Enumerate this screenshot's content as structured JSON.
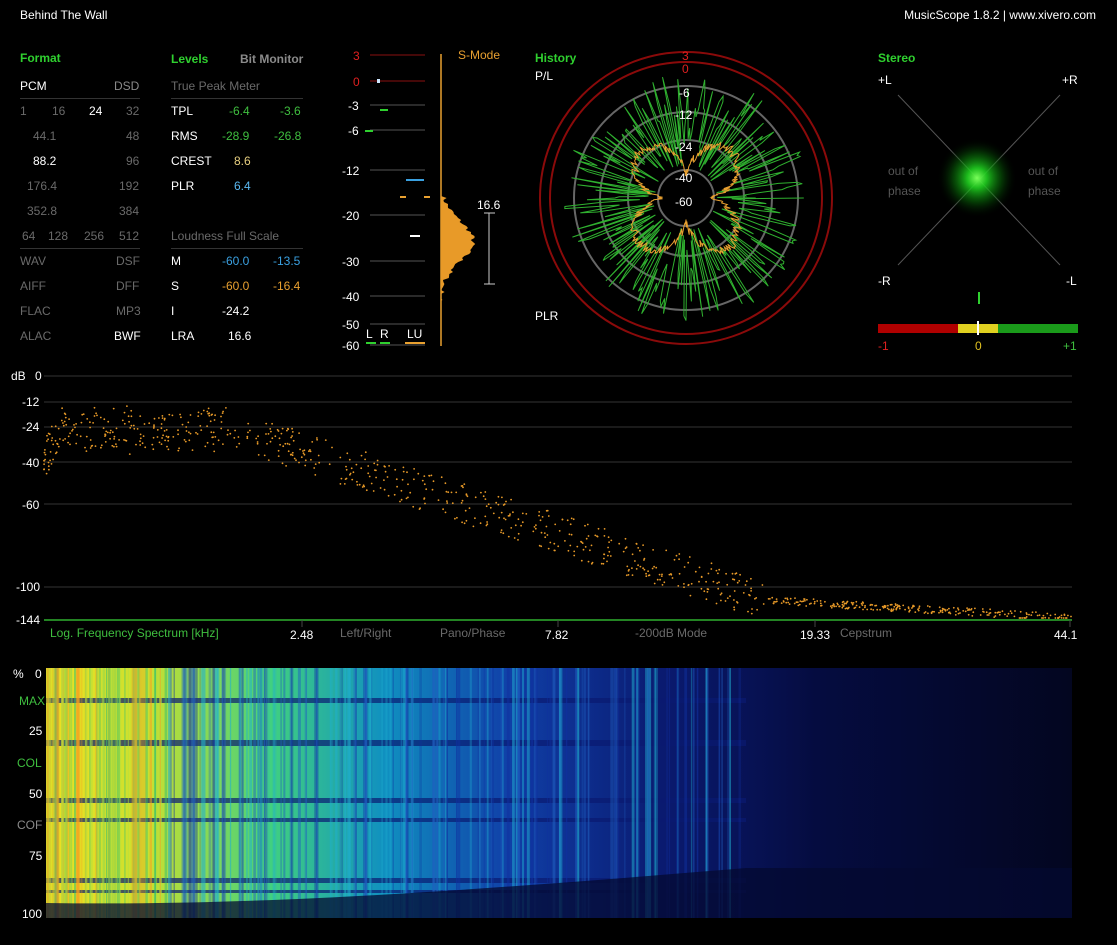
{
  "header": {
    "track_title": "Behind The Wall",
    "app_info": "MusicScope 1.8.2 | www.xivero.com"
  },
  "format": {
    "heading": "Format",
    "pcm": "PCM",
    "dsd": "DSD",
    "bit_depths": [
      "1",
      "16",
      "24",
      "32"
    ],
    "rates": [
      [
        "44.1",
        "48"
      ],
      [
        "88.2",
        "96"
      ],
      [
        "176.4",
        "192"
      ],
      [
        "352.8",
        "384"
      ]
    ],
    "dsd_rates": [
      "64",
      "128",
      "256",
      "512"
    ],
    "file_types": [
      [
        "WAV",
        "DSF"
      ],
      [
        "AIFF",
        "DFF"
      ],
      [
        "FLAC",
        "MP3"
      ],
      [
        "ALAC",
        "BWF"
      ]
    ]
  },
  "levels": {
    "heading": "Levels",
    "bit_monitor": "Bit Monitor",
    "true_peak_title": "True Peak Meter",
    "rows": [
      {
        "label": "TPL",
        "left": "-6.4",
        "right": "-3.6"
      },
      {
        "label": "RMS",
        "left": "-28.9",
        "right": "-26.8"
      },
      {
        "label": "CREST",
        "left": "8.6"
      },
      {
        "label": "PLR",
        "left": "6.4"
      }
    ],
    "loudness_title": "Loudness Full Scale",
    "loud_rows": [
      {
        "label": "M",
        "a": "-60.0",
        "b": "-13.5"
      },
      {
        "label": "S",
        "a": "-60.0",
        "b": "-16.4"
      },
      {
        "label": "I",
        "a": "-24.2"
      },
      {
        "label": "LRA",
        "a": "16.6"
      }
    ]
  },
  "meter": {
    "smode": "S-Mode",
    "scale": [
      "3",
      "0",
      "-3",
      "-6",
      "-12",
      "-20",
      "-30",
      "-40",
      "-50",
      "-60"
    ],
    "lra_value": "16.6",
    "bottom_labels": [
      "L",
      "R",
      "LU"
    ]
  },
  "history": {
    "heading": "History",
    "top_label": "P/L",
    "bottom_label": "PLR",
    "ring_labels": [
      "3",
      "0",
      "-6",
      "-12",
      "-24",
      "-40",
      "-60"
    ]
  },
  "stereo": {
    "heading": "Stereo",
    "corner_labels": {
      "tl": "+L",
      "tr": "+R",
      "bl": "-R",
      "br": "-L"
    },
    "out_of_phase": "out of",
    "phase": "phase",
    "correlation_labels": [
      "-1",
      "0",
      "+1"
    ]
  },
  "spectrum": {
    "db_label": "dB",
    "y_ticks": [
      "0",
      "-12",
      "-24",
      "-40",
      "-60",
      "-100",
      "-144"
    ],
    "bottom_labels": {
      "title": "Log. Frequency Spectrum [kHz]",
      "f1": "2.48",
      "mode1": "Left/Right",
      "mode2": "Pano/Phase",
      "f2": "7.82",
      "mode3": "-200dB Mode",
      "f3": "19.33",
      "mode4": "Cepstrum",
      "f4": "44.1"
    }
  },
  "spectrogram": {
    "pct_label": "%",
    "ticks": [
      "0",
      "25",
      "50",
      "75",
      "100"
    ],
    "modes": [
      "MAX",
      "COL",
      "COF"
    ]
  },
  "colors": {
    "accent_green": "#3fbf3f",
    "accent_orange": "#e8a030",
    "red_ring": "#8a0a0a",
    "blue": "#3aa0e0"
  }
}
